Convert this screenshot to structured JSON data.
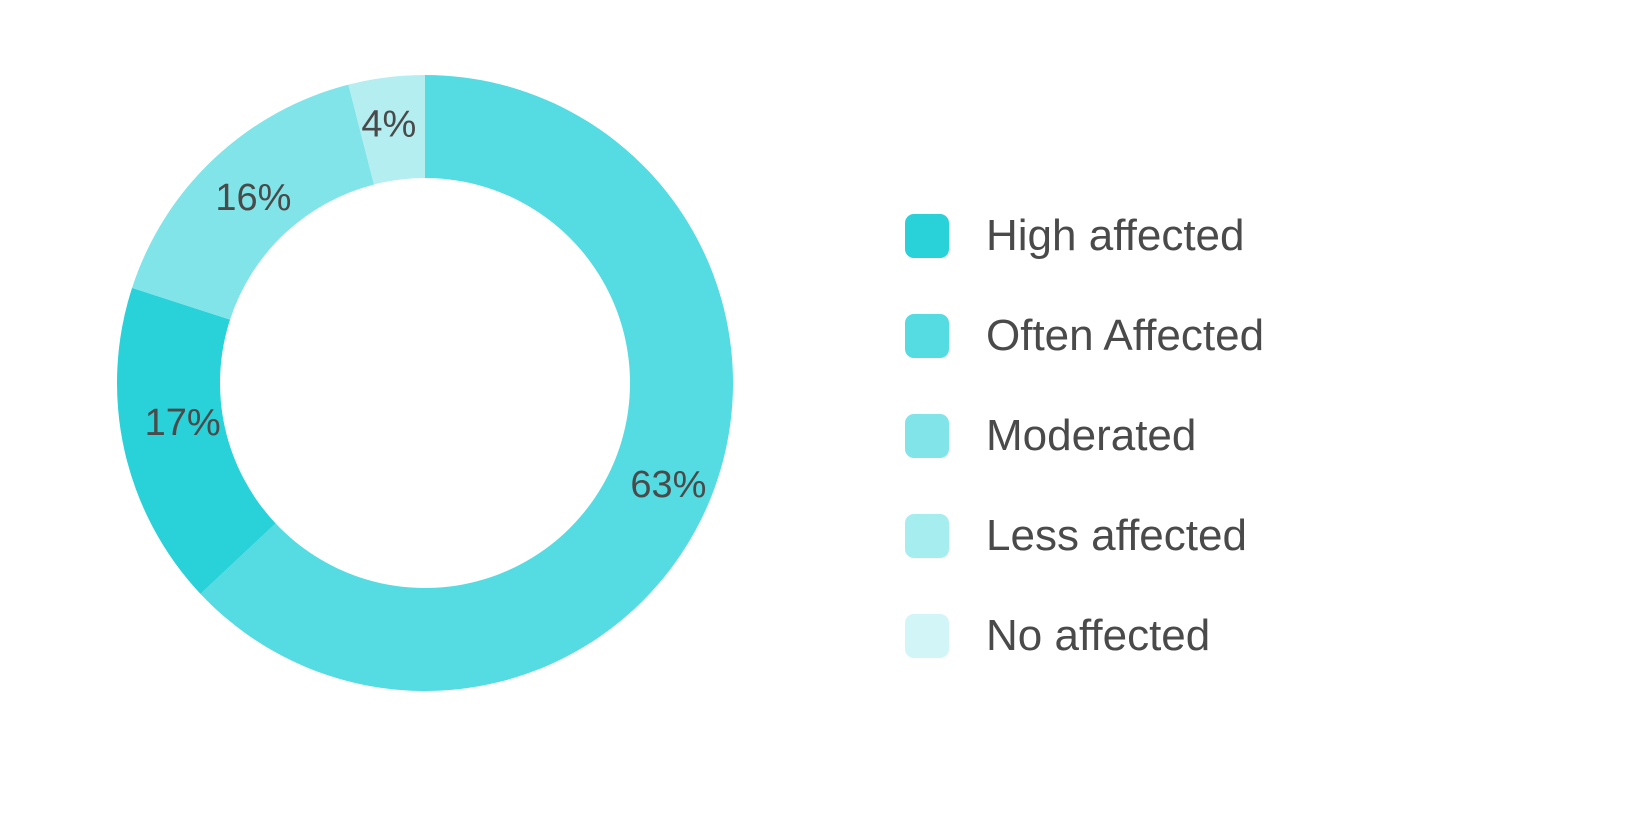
{
  "chart_data": {
    "type": "pie",
    "variant": "donut",
    "title": "",
    "series": [
      {
        "categories": [
          "High affected",
          "Often Affected",
          "Moderated",
          "Less affected",
          "No affected"
        ],
        "values": [
          17,
          63,
          16,
          0,
          4
        ],
        "value_labels": [
          "17%",
          "63%",
          "16%",
          "",
          "4%"
        ],
        "colors": [
          "#29d1d9",
          "#55dbe2",
          "#80e4e9",
          "#a6edf0",
          "#b5eef0"
        ]
      }
    ],
    "legend": {
      "position": "right",
      "items": [
        {
          "label": "High affected",
          "color": "#29d1d9"
        },
        {
          "label": "Often Affected",
          "color": "#55dbe2"
        },
        {
          "label": "Moderated",
          "color": "#80e4e9"
        },
        {
          "label": "Less affected",
          "color": "#a6edf0"
        },
        {
          "label": "No affected",
          "color": "#d2f5f7"
        }
      ]
    },
    "start_angle_deg": 0,
    "direction": "clockwise",
    "slice_order": [
      "Often Affected",
      "High affected",
      "Moderated",
      "No affected"
    ]
  }
}
